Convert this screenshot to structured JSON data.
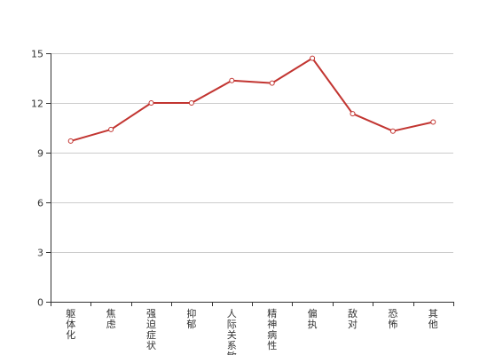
{
  "chart_data": {
    "type": "line",
    "categories": [
      "躯体化",
      "焦虑",
      "强迫症状",
      "抑郁",
      "人际关系敏感",
      "精神病性",
      "偏执",
      "敌对",
      "恐怖",
      "其他"
    ],
    "series": [
      {
        "values": [
          9.7,
          10.4,
          12.0,
          12.0,
          13.35,
          13.2,
          14.7,
          11.35,
          10.3,
          10.85
        ]
      }
    ],
    "yticks": [
      0,
      3,
      6,
      9,
      12,
      15
    ],
    "ylim": [
      0,
      15
    ],
    "grid": true,
    "colors": {
      "line": "#c23531",
      "grid": "#cccccc",
      "axis": "#333333"
    }
  }
}
